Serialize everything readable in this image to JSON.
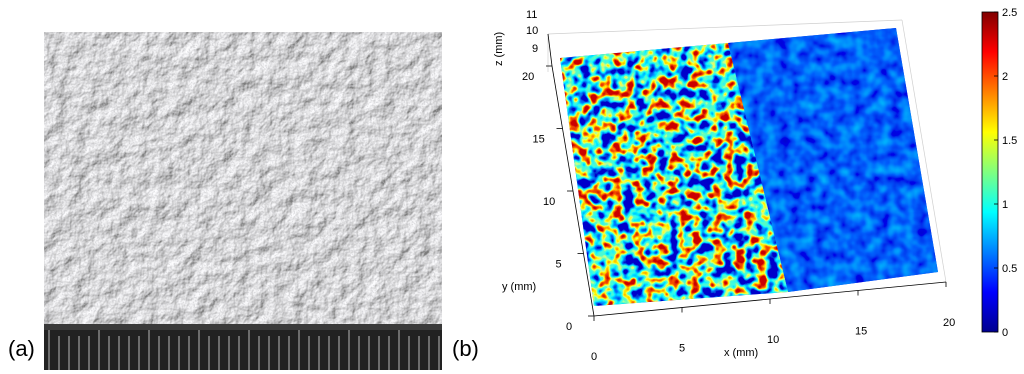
{
  "panel_a": {
    "label": "(a)"
  },
  "panel_b": {
    "label": "(b)",
    "x_axis_label": "x (mm)",
    "y_axis_label": "y (mm)",
    "z_axis_label": "z (mm)",
    "x_ticks": [
      "0",
      "5",
      "10",
      "15",
      "20"
    ],
    "y_ticks": [
      "0",
      "5",
      "10",
      "15",
      "20"
    ],
    "z_ticks": [
      "9",
      "10",
      "11"
    ],
    "colorbar_ticks": [
      "0",
      "0.5",
      "1",
      "1.5",
      "2",
      "2.5"
    ],
    "colorbar_range": [
      0,
      2.5
    ],
    "colormap": "jet",
    "colormap_colors": [
      "#00008f",
      "#0000ff",
      "#00ffff",
      "#ffff00",
      "#ff0000",
      "#800000"
    ]
  }
}
